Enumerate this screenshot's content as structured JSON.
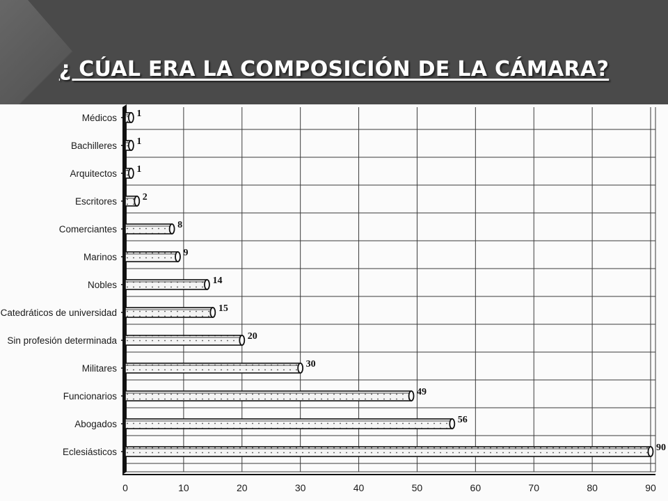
{
  "slide": {
    "title": "¿ CÚAL ERA LA COMPOSICIÓN DE LA CÁMARA?"
  },
  "chart_data": {
    "type": "bar",
    "orientation": "horizontal",
    "categories": [
      "Médicos",
      "Bachilleres",
      "Arquitectos",
      "Escritores",
      "Comerciantes",
      "Marinos",
      "Nobles",
      "Catedráticos de universidad",
      "Sin profesión determinada",
      "Militares",
      "Funcionarios",
      "Abogados",
      "Eclesiásticos"
    ],
    "values": [
      1,
      1,
      1,
      2,
      8,
      9,
      14,
      15,
      20,
      30,
      49,
      56,
      90
    ],
    "value_labels": [
      "1",
      "1",
      "1",
      "2",
      "8",
      "9",
      "14",
      "15",
      "20",
      "30",
      "49",
      "56",
      "90"
    ],
    "x_ticks": [
      0,
      10,
      20,
      30,
      40,
      50,
      60,
      70,
      80,
      90
    ],
    "xlim": [
      0,
      90
    ],
    "grid": true,
    "bar_style": "dotted 3d cylinder",
    "colors": {
      "bar_fill": "#f4f4f4",
      "bar_dots": "#444444",
      "bar_outline": "#111111",
      "header_bg": "#4a4a4a",
      "title_text": "#ffffff"
    }
  }
}
